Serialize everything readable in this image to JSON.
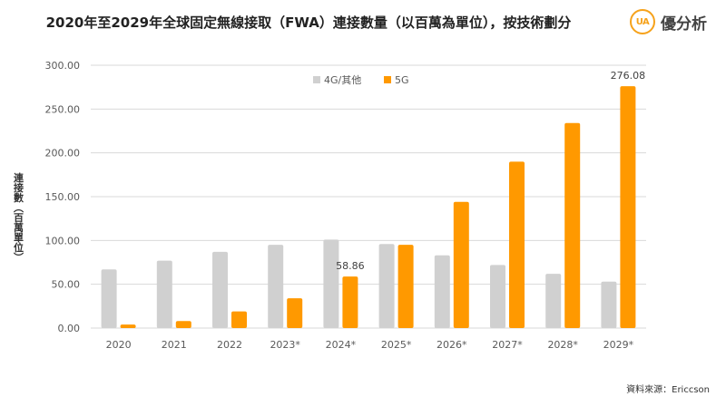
{
  "header": {
    "title": "2020年至2029年全球固定無線接取（FWA）連接數量（以百萬為單位），按技術劃分",
    "logo_mark": "UA",
    "logo_text": "優分析"
  },
  "footer": {
    "source": "資料來源：Ericcson"
  },
  "colors": {
    "series_4g": "#d0d0d0",
    "series_5g": "#ff9900",
    "gridline": "#d9d9d9"
  },
  "chart_data": {
    "type": "bar",
    "title": "2020年至2029年全球固定無線接取（FWA）連接數量（以百萬為單位），按技術劃分",
    "ylabel": "連接數（百萬單位）",
    "xlabel": "",
    "categories": [
      "2020",
      "2021",
      "2022",
      "2023*",
      "2024*",
      "2025*",
      "2026*",
      "2027*",
      "2028*",
      "2029*"
    ],
    "series": [
      {
        "name": "4G/其他",
        "values": [
          67,
          77,
          87,
          95,
          101,
          96,
          83,
          72,
          62,
          53
        ]
      },
      {
        "name": "5G",
        "values": [
          4,
          8,
          19,
          34,
          58.86,
          95,
          144,
          190,
          234,
          276.08
        ]
      }
    ],
    "ylim": [
      0,
      300
    ],
    "yticks": [
      "0.00",
      "50.00",
      "100.00",
      "150.00",
      "200.00",
      "250.00",
      "300.00"
    ],
    "data_labels": [
      {
        "series": "5G",
        "category": "2024*",
        "text": "58.86"
      },
      {
        "series": "5G",
        "category": "2029*",
        "text": "276.08"
      }
    ],
    "legend_position": "top-center",
    "grid": true
  }
}
